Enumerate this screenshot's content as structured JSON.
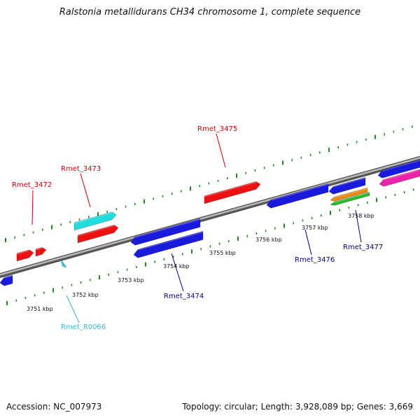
{
  "title": "Ralstonia metallidurans CH34 chromosome 1, complete sequence",
  "footer": {
    "accession": "Accession: NC_007973",
    "summary": "Topology: circular; Length: 3,928,089 bp; Genes: 3,669"
  },
  "colors": {
    "backbone": "#8c8c8c",
    "tick": "#1f8a1f",
    "forward_label": "#cc0000",
    "reverse_label": "#00008b",
    "rna_label": "#33bbdd"
  },
  "kbp_labels": [
    "3751 kbp",
    "3752 kbp",
    "3753 kbp",
    "3754 kbp",
    "3755 kbp",
    "3756 kbp",
    "3757 kbp",
    "3758 kbp"
  ],
  "genes": {
    "Rmet_3472": "Rmet_3472",
    "Rmet_3473": "Rmet_3473",
    "Rmet_3474": "Rmet_3474",
    "Rmet_3475": "Rmet_3475",
    "Rmet_3476": "Rmet_3476",
    "Rmet_3477": "Rmet_3477",
    "Rmet_R0066": "Rmet_R0066"
  }
}
